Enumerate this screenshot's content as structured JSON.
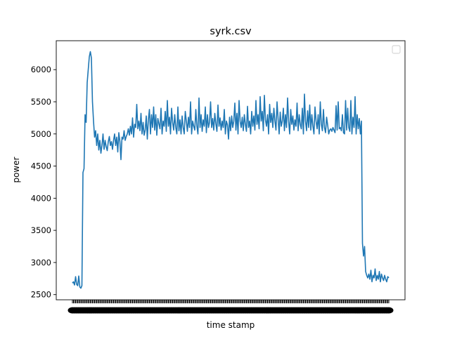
{
  "chart_data": {
    "type": "line",
    "title": "syrk.csv",
    "xlabel": "time stamp",
    "ylabel": "power",
    "ylim": [
      2420,
      6450
    ],
    "yticks": [
      2500,
      3000,
      3500,
      4000,
      4500,
      5000,
      5500,
      6000
    ],
    "legend": {
      "placement": "top-right",
      "entries": []
    },
    "grid": false,
    "color": "#1f77b4",
    "series": [
      {
        "values": [
          2680,
          2700,
          2650,
          2780,
          2660,
          2640,
          2790,
          2620,
          2600,
          2640,
          4400,
          4460,
          5300,
          5180,
          5800,
          6000,
          6200,
          6280,
          6180,
          5500,
          5200,
          4950,
          5050,
          4820,
          5000,
          4750,
          4900,
          4700,
          4820,
          5000,
          4760,
          4900,
          4800,
          4740,
          4880,
          4960,
          4820,
          4880,
          4760,
          4900,
          5000,
          4820,
          4950,
          4720,
          5020,
          4880,
          4600,
          4950,
          4920,
          5050,
          4900,
          4960,
          5000,
          5080,
          4980,
          5120,
          5000,
          5250,
          4950,
          5150,
          5100,
          5460,
          5080,
          5200,
          5050,
          5320,
          5000,
          5180,
          4980,
          5060,
          5280,
          4920,
          5220,
          5380,
          5000,
          5300,
          5100,
          5420,
          5060,
          5300,
          4980,
          5240,
          5160,
          5080,
          5400,
          5000,
          5200,
          5120,
          5350,
          5040,
          5520,
          5120,
          5260,
          5000,
          5400,
          5180,
          5060,
          5300,
          5100,
          5000,
          5420,
          5050,
          5220,
          5000,
          5280,
          5100,
          5000,
          5350,
          5200,
          5040,
          5260,
          5100,
          5500,
          5000,
          5200,
          5120,
          5060,
          5380,
          5120,
          5000,
          5560,
          5100,
          5300,
          5040,
          5220,
          5120,
          5420,
          5020,
          5300,
          5100,
          5180,
          5500,
          5100,
          5240,
          5060,
          5320,
          5160,
          5040,
          5450,
          5120,
          5250,
          5060,
          5200,
          5100,
          5380,
          5000,
          5200,
          5140,
          4920,
          5260,
          5050,
          5280,
          5100,
          5200,
          5480,
          5060,
          5320,
          5000,
          5520,
          5200,
          5100,
          5260,
          5050,
          5300,
          5150,
          5040,
          5430,
          5100,
          5200,
          5000,
          5350,
          5120,
          5280,
          5060,
          5520,
          5150,
          5300,
          5080,
          5580,
          5200,
          5350,
          5050,
          5600,
          5220,
          5120,
          5300,
          5000,
          5460,
          5180,
          5320,
          5100,
          5400,
          5200,
          5060,
          5500,
          5240,
          5000,
          5340,
          5120,
          5200,
          5400,
          5050,
          5300,
          5100,
          5560,
          5200,
          5000,
          5380,
          5150,
          5280,
          5060,
          5220,
          5120,
          5480,
          5050,
          5300,
          5150,
          5080,
          5400,
          5000,
          5620,
          5200,
          5050,
          5360,
          5100,
          5450,
          5060,
          5300,
          5120,
          5000,
          5420,
          5200,
          5080,
          5300,
          5000,
          5500,
          5150,
          5050,
          5380,
          5100,
          5020,
          5260,
          5140,
          5000,
          5060,
          5080,
          5040,
          5100,
          5060,
          5020,
          5440,
          5060,
          5500,
          5080,
          5100,
          5050,
          5300,
          5020,
          5000,
          5520,
          5060,
          5400,
          5100,
          5040,
          5520,
          5000,
          5260,
          5100,
          5580,
          5000,
          5300,
          5080,
          5240,
          5000,
          5200,
          3300,
          3100,
          3250,
          2860,
          2800,
          2760,
          2820,
          2740,
          2880,
          2700,
          2800,
          2760,
          2900,
          2720,
          2800,
          2740,
          2860,
          2700,
          2820,
          2760,
          2720,
          2800,
          2740,
          2700,
          2780,
          2760
        ]
      }
    ]
  }
}
